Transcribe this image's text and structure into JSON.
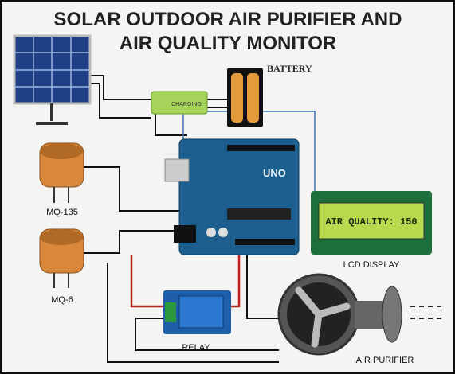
{
  "title": {
    "line1": "SOLAR OUTDOOR AIR PURIFIER AND",
    "line2": "AIR QUALITY MONITOR"
  },
  "nodes": [
    {
      "label": "BATTERY"
    },
    {
      "label": "CHARGING"
    },
    {
      "label": "MQ-135"
    },
    {
      "label": "MQ-6"
    },
    {
      "label": "LCD DISPLAY"
    },
    {
      "label": "RELAY"
    },
    {
      "label": "AIR PURIFIER"
    }
  ],
  "lcd_text": "AIR QUALITY: 150",
  "board_text": "UNO"
}
